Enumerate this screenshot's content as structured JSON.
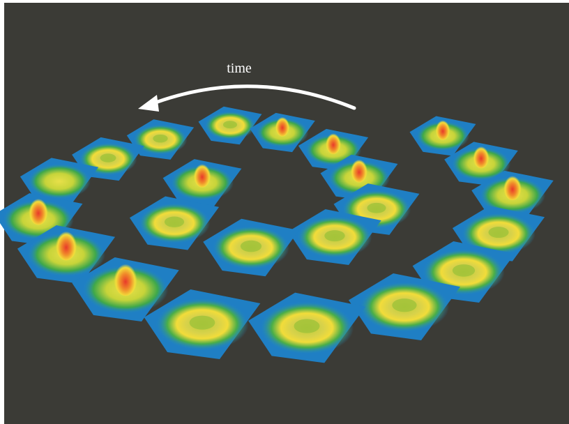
{
  "annotation": {
    "label": "time"
  }
}
